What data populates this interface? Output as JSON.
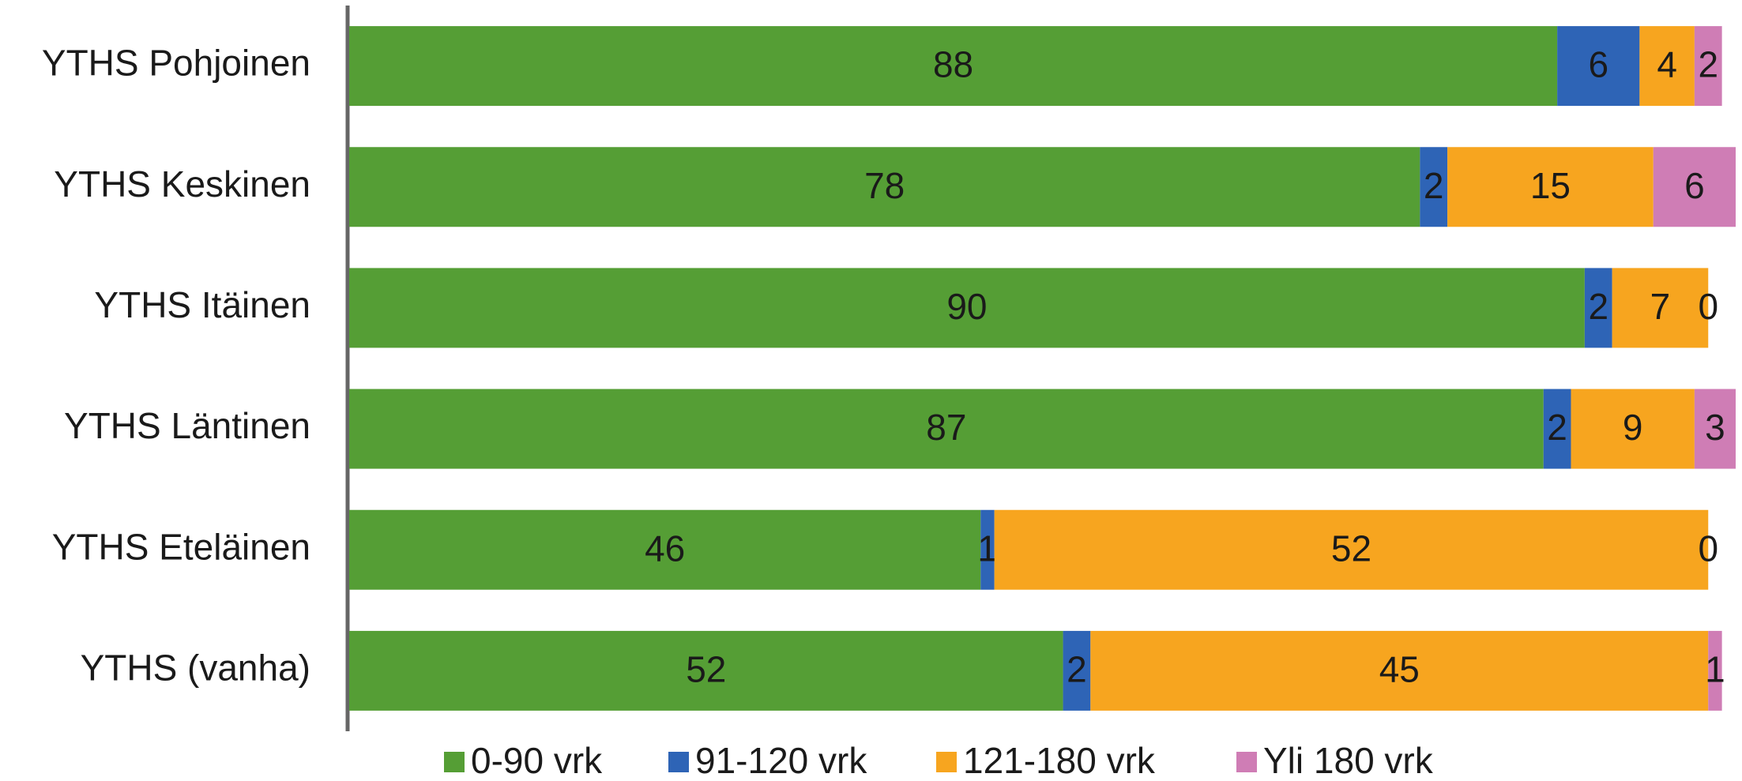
{
  "chart_data": {
    "type": "stacked-barh",
    "categories": [
      "YTHS Pohjoinen",
      "YTHS Keskinen",
      "YTHS Itäinen",
      "YTHS Läntinen",
      "YTHS Eteläinen",
      "YTHS (vanha)"
    ],
    "series": [
      {
        "name": "0-90 vrk",
        "color": "#559e35",
        "values": [
          88,
          78,
          90,
          87,
          46,
          52
        ]
      },
      {
        "name": "91-120 vrk",
        "color": "#2e64b6",
        "values": [
          6,
          2,
          2,
          2,
          1,
          2
        ]
      },
      {
        "name": "121-180 vrk",
        "color": "#f7a51f",
        "values": [
          4,
          15,
          7,
          9,
          52,
          45
        ]
      },
      {
        "name": "Yli 180 vrk",
        "color": "#cf7db5",
        "values": [
          2,
          6,
          0,
          3,
          0,
          1
        ]
      }
    ],
    "legend": "bottom"
  }
}
